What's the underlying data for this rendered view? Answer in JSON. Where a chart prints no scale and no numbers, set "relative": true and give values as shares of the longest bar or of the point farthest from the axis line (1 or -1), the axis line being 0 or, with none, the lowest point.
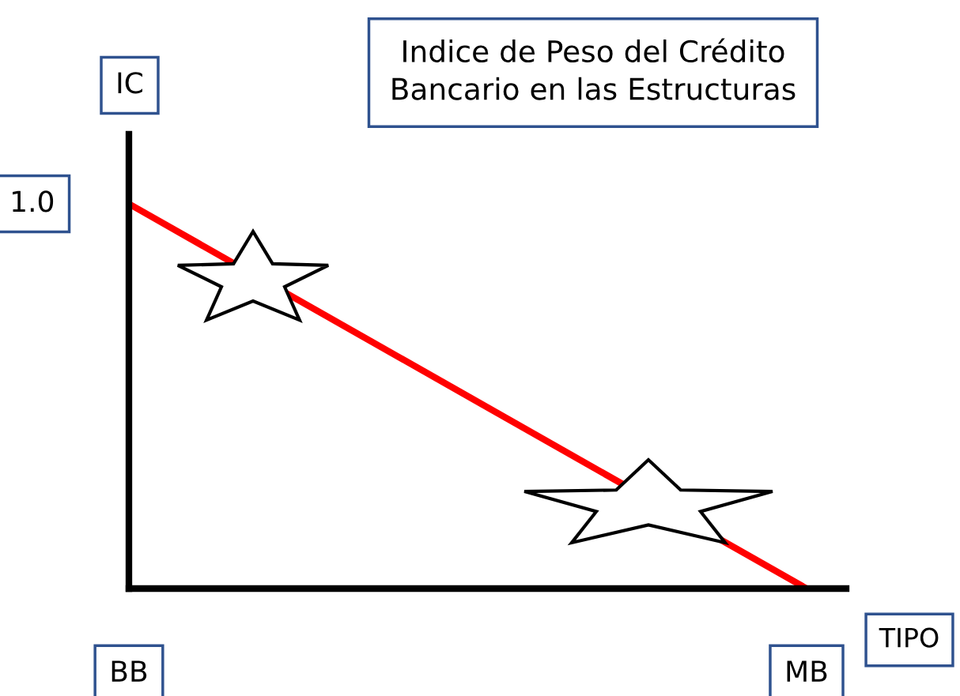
{
  "chart_data": {
    "type": "line",
    "title": "Indice de Peso del Crédito\nBancario en las Estructuras",
    "xlabel": "TIPO",
    "ylabel": "IC",
    "categories": [
      "BB",
      "MB"
    ],
    "relative": true,
    "line_style": "solid",
    "series": [
      {
        "color": "#ff0000",
        "values": [
          1,
          0
        ]
      }
    ],
    "annotations": [
      {
        "text": "1.0",
        "x": "BB",
        "y": 1
      }
    ]
  }
}
